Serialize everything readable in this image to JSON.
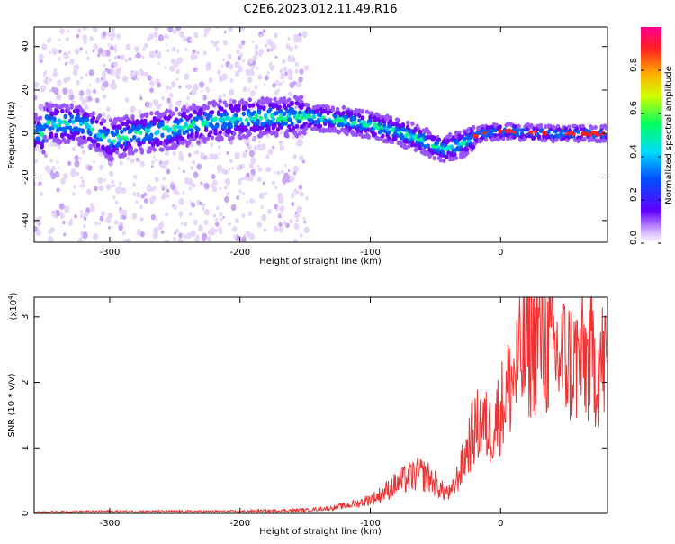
{
  "title": "C2E6.2023.012.11.49.R16",
  "chart_data": [
    {
      "type": "heatmap",
      "xlabel": "Height of straight line (km)",
      "ylabel": "Frequency (Hz)",
      "xlim": [
        -358,
        82
      ],
      "ylim": [
        -50,
        49
      ],
      "x_ticks": [
        -300,
        -200,
        -100,
        0
      ],
      "y_ticks": [
        -40,
        -20,
        0,
        20,
        40
      ],
      "band_center_hz": [
        {
          "x": -350,
          "y": 5
        },
        {
          "x": -320,
          "y": 4
        },
        {
          "x": -300,
          "y": -3
        },
        {
          "x": -280,
          "y": 0
        },
        {
          "x": -250,
          "y": 2
        },
        {
          "x": -230,
          "y": 5
        },
        {
          "x": -200,
          "y": 7
        },
        {
          "x": -150,
          "y": 8
        },
        {
          "x": -120,
          "y": 6
        },
        {
          "x": -100,
          "y": 4
        },
        {
          "x": -80,
          "y": 1
        },
        {
          "x": -60,
          "y": -3
        },
        {
          "x": -45,
          "y": -7
        },
        {
          "x": -30,
          "y": -5
        },
        {
          "x": -15,
          "y": 0
        },
        {
          "x": 0,
          "y": 1
        },
        {
          "x": 40,
          "y": 0
        },
        {
          "x": 80,
          "y": 0
        }
      ],
      "colorbar": {
        "label": "Normalized spectral amplitude",
        "ticks": [
          "0.0",
          "0.2",
          "0.4",
          "0.6",
          "0.8"
        ],
        "range": [
          0,
          1
        ]
      },
      "colors": {
        "low": "#e8d8f8",
        "mid": "#6a00ff",
        "high": "#ff0020"
      }
    },
    {
      "type": "line",
      "xlabel": "Height of straight line (km)",
      "ylabel": "SNR (10 * v/v)",
      "y_multiplier": "(x10",
      "y_multiplier_exp": "4",
      "y_multiplier_close": ")",
      "xlim": [
        -358,
        82
      ],
      "ylim": [
        0,
        3.3
      ],
      "x_ticks": [
        -300,
        -200,
        -100,
        0
      ],
      "y_ticks": [
        0,
        1,
        2,
        3
      ],
      "series": [
        {
          "color": "#ee3333",
          "x": [
            -358,
            -300,
            -250,
            -200,
            -150,
            -130,
            -110,
            -95,
            -80,
            -70,
            -62,
            -55,
            -45,
            -38,
            -30,
            -22,
            -15,
            -8,
            0,
            8,
            15,
            22,
            28,
            35,
            45,
            55,
            65,
            75,
            82
          ],
          "y": [
            0.02,
            0.03,
            0.03,
            0.03,
            0.05,
            0.08,
            0.15,
            0.25,
            0.45,
            0.55,
            0.6,
            0.55,
            0.35,
            0.3,
            0.7,
            1.2,
            1.4,
            1.25,
            1.6,
            2.0,
            2.3,
            2.5,
            2.7,
            2.55,
            2.4,
            2.3,
            2.35,
            2.3,
            2.3
          ]
        }
      ]
    }
  ]
}
